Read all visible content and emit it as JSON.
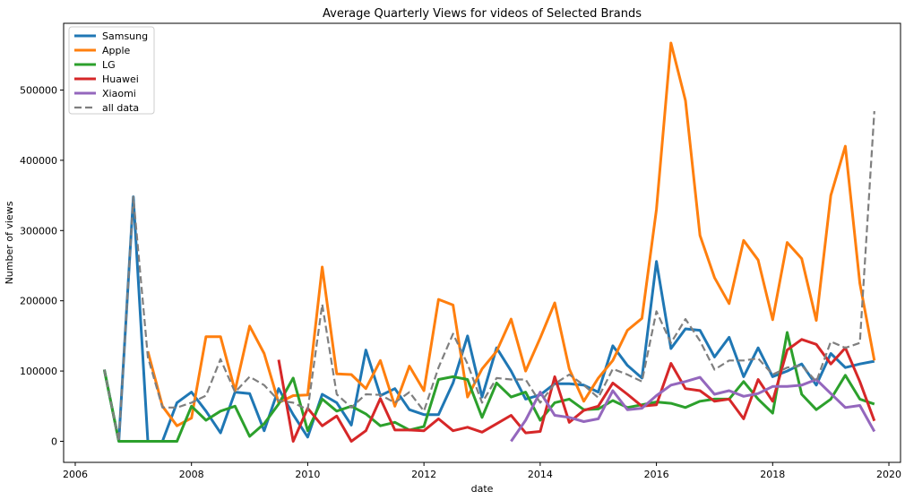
{
  "chart_data": {
    "type": "line",
    "title": "Average Quarterly Views for videos of Selected Brands",
    "xlabel": "date",
    "ylabel": "Number of views",
    "xlim": [
      2005.8,
      2020.2
    ],
    "ylim": [
      -30000,
      595000
    ],
    "xticks": [
      2006,
      2008,
      2010,
      2012,
      2014,
      2016,
      2018,
      2020
    ],
    "yticks": [
      0,
      100000,
      200000,
      300000,
      400000,
      500000
    ],
    "legend_position": "upper-left",
    "grid": false,
    "series": [
      {
        "name": "Samsung",
        "color": "#1f77b4",
        "dashed": false,
        "x": [
          2006.5,
          2006.75,
          2007.0,
          2007.25,
          2007.5,
          2007.75,
          2008.0,
          2008.25,
          2008.5,
          2008.75,
          2009.0,
          2009.25,
          2009.5,
          2009.75,
          2010.0,
          2010.25,
          2010.5,
          2010.75,
          2011.0,
          2011.25,
          2011.5,
          2011.75,
          2012.0,
          2012.25,
          2012.5,
          2012.75,
          2013.0,
          2013.25,
          2013.5,
          2013.75,
          2014.0,
          2014.25,
          2014.5,
          2014.75,
          2015.0,
          2015.25,
          2015.5,
          2015.75,
          2016.0,
          2016.25,
          2016.5,
          2016.75,
          2017.0,
          2017.25,
          2017.5,
          2017.75,
          2018.0,
          2018.25,
          2018.5,
          2018.75,
          2019.0,
          2019.25,
          2019.5,
          2019.75
        ],
        "y": [
          102000,
          0,
          348000,
          0,
          0,
          55000,
          70000,
          43000,
          12000,
          70000,
          68000,
          15000,
          75000,
          38000,
          6000,
          67000,
          55000,
          23000,
          130000,
          65000,
          75000,
          45000,
          38000,
          38000,
          83000,
          150000,
          63000,
          133000,
          100000,
          60000,
          66000,
          82000,
          82000,
          80000,
          70000,
          136000,
          108000,
          90000,
          256000,
          132000,
          160000,
          158000,
          120000,
          148000,
          92000,
          133000,
          92000,
          100000,
          110000,
          80000,
          125000,
          105000,
          110000,
          114000
        ]
      },
      {
        "name": "Apple",
        "color": "#ff7f0e",
        "dashed": false,
        "x": [
          2007.25,
          2007.5,
          2007.75,
          2008.0,
          2008.25,
          2008.5,
          2008.75,
          2009.0,
          2009.25,
          2009.5,
          2009.75,
          2010.0,
          2010.25,
          2010.5,
          2010.75,
          2011.0,
          2011.25,
          2011.5,
          2011.75,
          2012.0,
          2012.25,
          2012.5,
          2012.75,
          2013.0,
          2013.25,
          2013.5,
          2013.75,
          2014.0,
          2014.25,
          2014.5,
          2014.75,
          2015.0,
          2015.25,
          2015.5,
          2015.75,
          2016.0,
          2016.25,
          2016.5,
          2016.75,
          2017.0,
          2017.25,
          2017.5,
          2017.75,
          2018.0,
          2018.25,
          2018.5,
          2018.75,
          2019.0,
          2019.25,
          2019.5,
          2019.75
        ],
        "y": [
          128000,
          50000,
          22000,
          33000,
          149000,
          149000,
          72000,
          164000,
          125000,
          55000,
          65000,
          66000,
          248000,
          96000,
          95000,
          75000,
          115000,
          50000,
          107000,
          72000,
          202000,
          194000,
          63000,
          103000,
          128000,
          174000,
          100000,
          147000,
          197000,
          103000,
          57000,
          90000,
          115000,
          158000,
          175000,
          330000,
          567000,
          485000,
          293000,
          233000,
          196000,
          286000,
          258000,
          173000,
          283000,
          260000,
          172000,
          350000,
          420000,
          225000,
          115000
        ]
      },
      {
        "name": "LG",
        "color": "#2ca02c",
        "dashed": false,
        "x": [
          2006.5,
          2006.75,
          2007.0,
          2007.25,
          2007.5,
          2007.75,
          2008.0,
          2008.25,
          2008.5,
          2008.75,
          2009.0,
          2009.25,
          2009.5,
          2009.75,
          2010.0,
          2010.25,
          2010.5,
          2010.75,
          2011.0,
          2011.25,
          2011.5,
          2011.75,
          2012.0,
          2012.25,
          2012.5,
          2012.75,
          2013.0,
          2013.25,
          2013.5,
          2013.75,
          2014.0,
          2014.25,
          2014.5,
          2014.75,
          2015.0,
          2015.25,
          2015.5,
          2015.75,
          2016.0,
          2016.25,
          2016.5,
          2016.75,
          2017.0,
          2017.25,
          2017.5,
          2017.75,
          2018.0,
          2018.25,
          2018.5,
          2018.75,
          2019.0,
          2019.25,
          2019.5,
          2019.75
        ],
        "y": [
          102000,
          0,
          0,
          0,
          0,
          0,
          50000,
          30000,
          43000,
          50000,
          7000,
          25000,
          53000,
          90000,
          15000,
          60000,
          43000,
          50000,
          39000,
          22000,
          27000,
          16000,
          21000,
          88000,
          92000,
          88000,
          34000,
          83000,
          63000,
          70000,
          30000,
          55000,
          60000,
          45000,
          46000,
          58000,
          48000,
          52000,
          56000,
          54000,
          48000,
          57000,
          60000,
          60000,
          85000,
          60000,
          40000,
          155000,
          67000,
          45000,
          60000,
          94000,
          60000,
          53000
        ]
      },
      {
        "name": "Huawei",
        "color": "#d62728",
        "dashed": false,
        "x": [
          2009.5,
          2009.75,
          2010.0,
          2010.25,
          2010.5,
          2010.75,
          2011.0,
          2011.25,
          2011.5,
          2011.75,
          2012.0,
          2012.25,
          2012.5,
          2012.75,
          2013.0,
          2013.25,
          2013.5,
          2013.75,
          2014.0,
          2014.25,
          2014.5,
          2014.75,
          2015.0,
          2015.25,
          2015.5,
          2015.75,
          2016.0,
          2016.25,
          2016.5,
          2016.75,
          2017.0,
          2017.25,
          2017.5,
          2017.75,
          2018.0,
          2018.25,
          2018.5,
          2018.75,
          2019.0,
          2019.25,
          2019.5,
          2019.75
        ],
        "y": [
          116000,
          0,
          47000,
          22000,
          36000,
          0,
          15000,
          61000,
          16000,
          16000,
          15000,
          32000,
          15000,
          20000,
          13000,
          25000,
          37000,
          12000,
          14000,
          92000,
          27000,
          44000,
          50000,
          83000,
          67000,
          50000,
          52000,
          111000,
          75000,
          72000,
          57000,
          60000,
          32000,
          88000,
          57000,
          130000,
          145000,
          138000,
          110000,
          133000,
          85000,
          29000
        ]
      },
      {
        "name": "Xiaomi",
        "color": "#9467bd",
        "dashed": false,
        "x": [
          2013.5,
          2013.75,
          2014.0,
          2014.25,
          2014.5,
          2014.75,
          2015.0,
          2015.25,
          2015.5,
          2015.75,
          2016.0,
          2016.25,
          2016.5,
          2016.75,
          2017.0,
          2017.25,
          2017.5,
          2017.75,
          2018.0,
          2018.25,
          2018.5,
          2018.75,
          2019.0,
          2019.25,
          2019.5,
          2019.75
        ],
        "y": [
          0,
          30000,
          70000,
          37000,
          34000,
          28000,
          32000,
          72000,
          45000,
          47000,
          65000,
          80000,
          85000,
          91000,
          67000,
          72000,
          64000,
          68000,
          78000,
          78000,
          80000,
          88000,
          68000,
          48000,
          51000,
          14000
        ]
      },
      {
        "name": "all data",
        "color": "#7f7f7f",
        "dashed": true,
        "x": [
          2006.5,
          2006.75,
          2007.0,
          2007.25,
          2007.5,
          2007.75,
          2008.0,
          2008.25,
          2008.5,
          2008.75,
          2009.0,
          2009.25,
          2009.5,
          2009.75,
          2010.0,
          2010.25,
          2010.5,
          2010.75,
          2011.0,
          2011.25,
          2011.5,
          2011.75,
          2012.0,
          2012.25,
          2012.5,
          2012.75,
          2013.0,
          2013.25,
          2013.5,
          2013.75,
          2014.0,
          2014.25,
          2014.5,
          2014.75,
          2015.0,
          2015.25,
          2015.5,
          2015.75,
          2016.0,
          2016.25,
          2016.5,
          2016.75,
          2017.0,
          2017.25,
          2017.5,
          2017.75,
          2018.0,
          2018.25,
          2018.5,
          2018.75,
          2019.0,
          2019.25,
          2019.5,
          2019.75
        ],
        "y": [
          102000,
          0,
          348000,
          120000,
          48000,
          48000,
          55000,
          65000,
          117000,
          70000,
          92000,
          80000,
          58000,
          55000,
          45000,
          195000,
          67000,
          48000,
          67000,
          66000,
          55000,
          70000,
          43000,
          105000,
          153000,
          110000,
          55000,
          90000,
          88000,
          88000,
          55000,
          82000,
          95000,
          80000,
          62000,
          103000,
          95000,
          85000,
          185000,
          140000,
          174000,
          143000,
          102000,
          115000,
          115000,
          118000,
          95000,
          105000,
          108000,
          85000,
          142000,
          133000,
          140000,
          470000
        ]
      }
    ]
  }
}
